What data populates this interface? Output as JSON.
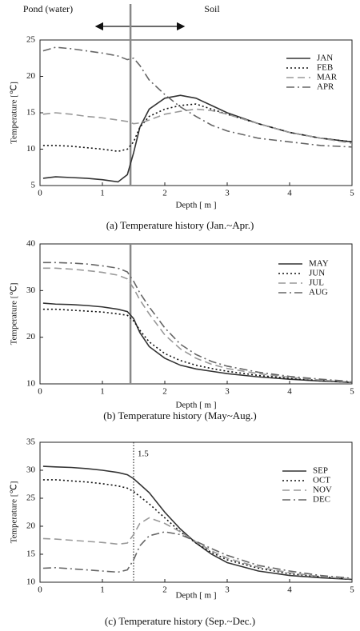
{
  "chart_data": [
    {
      "type": "line",
      "caption": "(a)  Temperature history  (Jan.~Apr.)",
      "xlabel": "Depth [ m ]",
      "ylabel": "Temperature  [℃]",
      "annotations": [
        "Pond (water)",
        "Soil"
      ],
      "vline": 1.45,
      "vline_style": "solid",
      "x": [
        0.05,
        0.25,
        0.5,
        0.75,
        1.0,
        1.25,
        1.4,
        1.5,
        1.6,
        1.75,
        2.0,
        2.25,
        2.5,
        2.75,
        3.0,
        3.5,
        4.0,
        4.5,
        5.0
      ],
      "xlim": [
        0,
        5
      ],
      "xticks": [
        0,
        1,
        2,
        3,
        4,
        5
      ],
      "ylim": [
        5,
        25
      ],
      "yticks": [
        5,
        10,
        15,
        20,
        25
      ],
      "series": [
        {
          "name": "JAN",
          "color": "#333333",
          "dash": "solid",
          "values": [
            6.0,
            6.2,
            6.1,
            6.0,
            5.8,
            5.5,
            6.5,
            9.5,
            13,
            15.5,
            17,
            17.4,
            17,
            16,
            15,
            13.5,
            12.3,
            11.5,
            11.0
          ]
        },
        {
          "name": "FEB",
          "color": "#111111",
          "dash": "dot",
          "values": [
            10.5,
            10.5,
            10.4,
            10.2,
            10,
            9.7,
            10,
            11,
            13,
            14.5,
            15.5,
            16,
            16.2,
            15.5,
            14.8,
            13.5,
            12.3,
            11.5,
            11.0
          ]
        },
        {
          "name": "MAR",
          "color": "#999999",
          "dash": "dash",
          "values": [
            14.8,
            15,
            14.8,
            14.5,
            14.3,
            14,
            13.8,
            13.5,
            13.6,
            14,
            14.8,
            15.2,
            15.5,
            15.3,
            14.8,
            13.5,
            12.3,
            11.5,
            10.8
          ]
        },
        {
          "name": "APR",
          "color": "#666666",
          "dash": "dashdot",
          "values": [
            23.5,
            24,
            23.8,
            23.5,
            23.2,
            22.8,
            22.3,
            22.5,
            21.5,
            19.5,
            17.5,
            15.8,
            14.5,
            13.3,
            12.5,
            11.5,
            11,
            10.5,
            10.3
          ]
        }
      ]
    },
    {
      "type": "line",
      "caption": "(b)  Temperature history  (May~Aug.)",
      "xlabel": "Depth [ m ]",
      "ylabel": "Temperature  [℃]",
      "vline": 1.45,
      "vline_style": "solid",
      "x": [
        0.05,
        0.25,
        0.5,
        0.75,
        1.0,
        1.25,
        1.4,
        1.5,
        1.6,
        1.75,
        2.0,
        2.25,
        2.5,
        2.75,
        3.0,
        3.5,
        4.0,
        4.5,
        5.0
      ],
      "xlim": [
        0,
        5
      ],
      "xticks": [
        0,
        1,
        2,
        3,
        4,
        5
      ],
      "ylim": [
        10,
        40
      ],
      "yticks": [
        10,
        20,
        30,
        40
      ],
      "series": [
        {
          "name": "MAY",
          "color": "#333333",
          "dash": "solid",
          "values": [
            27.3,
            27.1,
            27,
            26.8,
            26.5,
            26,
            25.5,
            24,
            21,
            18,
            15.5,
            14,
            13.2,
            12.7,
            12.2,
            11.5,
            11,
            10.6,
            10.3
          ]
        },
        {
          "name": "JUN",
          "color": "#111111",
          "dash": "dot",
          "values": [
            26,
            26,
            25.8,
            25.6,
            25.4,
            25,
            24.7,
            23.5,
            21.5,
            19,
            16.5,
            15,
            14,
            13.3,
            12.7,
            11.8,
            11.2,
            10.7,
            10.3
          ]
        },
        {
          "name": "JUL",
          "color": "#999999",
          "dash": "dash",
          "values": [
            34.8,
            34.8,
            34.6,
            34.3,
            33.9,
            33.3,
            32.5,
            30.5,
            28,
            25,
            20.5,
            17.5,
            15.5,
            14.2,
            13.3,
            12.2,
            11.4,
            10.8,
            10.4
          ]
        },
        {
          "name": "AUG",
          "color": "#666666",
          "dash": "dashdot",
          "values": [
            36,
            36,
            35.9,
            35.7,
            35.3,
            34.8,
            34,
            32,
            29.5,
            26.5,
            22,
            18.5,
            16.3,
            14.8,
            13.8,
            12.5,
            11.6,
            11,
            10.5
          ]
        }
      ]
    },
    {
      "type": "line",
      "caption": "(c)  Temperature history  (Sep.~Dec.)",
      "xlabel": "Depth [ m ]",
      "ylabel": "Temperature  [℃]",
      "vline": 1.5,
      "vline_style": "dotted",
      "x": [
        0.05,
        0.25,
        0.5,
        0.75,
        1.0,
        1.25,
        1.4,
        1.5,
        1.6,
        1.75,
        2.0,
        2.25,
        2.5,
        2.75,
        3.0,
        3.5,
        4.0,
        4.5,
        5.0
      ],
      "xlim": [
        0,
        5
      ],
      "xticks": [
        0,
        1,
        2,
        3,
        4,
        5
      ],
      "ylim": [
        10,
        35
      ],
      "yticks": [
        10,
        15,
        20,
        25,
        30,
        35
      ],
      "series": [
        {
          "name": "SEP",
          "color": "#333333",
          "dash": "solid",
          "values": [
            30.7,
            30.6,
            30.5,
            30.3,
            30,
            29.6,
            29.2,
            28.5,
            27.5,
            26,
            22.5,
            19.5,
            17,
            15,
            13.5,
            12,
            11.2,
            10.8,
            10.5
          ]
        },
        {
          "name": "OCT",
          "color": "#111111",
          "dash": "dot",
          "values": [
            28.3,
            28.3,
            28.1,
            27.9,
            27.6,
            27.2,
            26.8,
            26.2,
            25.3,
            24,
            21.5,
            19,
            17,
            15.3,
            14,
            12.5,
            11.5,
            11,
            10.5
          ]
        },
        {
          "name": "NOV",
          "color": "#999999",
          "dash": "dash",
          "values": [
            17.8,
            17.7,
            17.5,
            17.3,
            17.1,
            16.8,
            17,
            18.5,
            20.5,
            21.5,
            20.5,
            19,
            17.2,
            15.6,
            14.3,
            12.7,
            11.7,
            11,
            10.6
          ]
        },
        {
          "name": "DEC",
          "color": "#666666",
          "dash": "dashdot",
          "values": [
            12.5,
            12.6,
            12.4,
            12.2,
            12,
            11.8,
            12.2,
            14,
            16.5,
            18.3,
            19,
            18.5,
            17.3,
            16,
            14.8,
            13,
            12,
            11.2,
            10.7
          ]
        }
      ]
    }
  ]
}
